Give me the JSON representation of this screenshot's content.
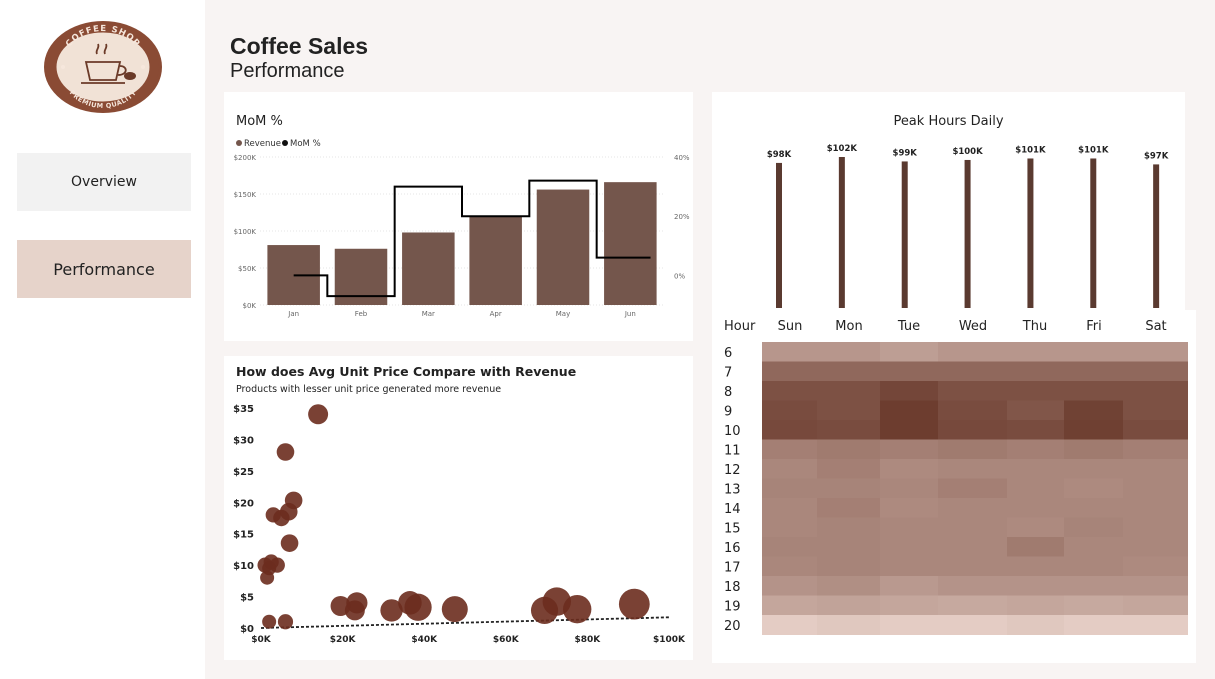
{
  "sidebar": {
    "logo": {
      "arc_top": "COFFEE SHOP",
      "arc_bottom": "PREMIUM QUALITY"
    },
    "nav": [
      {
        "label": "Overview",
        "active": false
      },
      {
        "label": "Performance",
        "active": true
      }
    ]
  },
  "header": {
    "title": "Coffee Sales",
    "subtitle": "Performance"
  },
  "colors": {
    "bar": "#74564c",
    "line": "#000000",
    "scatter": "#6b2c1e",
    "thin_bar": "#5a3a30",
    "heat_dark": "#6a3a2c",
    "heat_light": "#ead4cc"
  },
  "mom_card": {
    "title": "MoM %",
    "legend": [
      "Revenue",
      "MoM %"
    ]
  },
  "peak_card": {
    "title": "Peak Hours Daily"
  },
  "scatter_card": {
    "title": "How does Avg Unit Price Compare with Revenue",
    "subtitle": "Products with lesser unit price generated more revenue"
  },
  "chart_data": [
    {
      "type": "bar",
      "title": "MoM %",
      "categories": [
        "Jan",
        "Feb",
        "Mar",
        "Apr",
        "May",
        "Jun"
      ],
      "series": [
        {
          "name": "Revenue",
          "values": [
            81000,
            76000,
            98000,
            119000,
            156000,
            166000
          ]
        },
        {
          "name": "MoM %",
          "type": "line",
          "values": [
            0,
            -7,
            30,
            20,
            32,
            6
          ]
        }
      ],
      "y_ticks": [
        "$0K",
        "$50K",
        "$100K",
        "$150K",
        "$200K"
      ],
      "ylim": [
        0,
        200000
      ],
      "y2_ticks": [
        "0%",
        "20%",
        "40%"
      ],
      "y2lim": [
        -10,
        40
      ],
      "legend": "top-left"
    },
    {
      "type": "bar",
      "title": "Peak Hours Daily",
      "categories": [
        "Sun",
        "Mon",
        "Tue",
        "Wed",
        "Thu",
        "Fri",
        "Sat"
      ],
      "values": [
        98000,
        102000,
        99000,
        100000,
        101000,
        101000,
        97000
      ],
      "labels": [
        "$98K",
        "$102K",
        "$99K",
        "$100K",
        "$101K",
        "$101K",
        "$97K"
      ]
    },
    {
      "type": "heatmap",
      "row_header": "Hour",
      "columns": [
        "Sun",
        "Mon",
        "Tue",
        "Wed",
        "Thu",
        "Fri",
        "Sat"
      ],
      "rows": [
        "6",
        "7",
        "8",
        "9",
        "10",
        "11",
        "12",
        "13",
        "14",
        "15",
        "16",
        "17",
        "18",
        "19",
        "20"
      ],
      "values": [
        [
          0.4,
          0.4,
          0.35,
          0.4,
          0.4,
          0.4,
          0.4
        ],
        [
          0.7,
          0.7,
          0.7,
          0.7,
          0.7,
          0.7,
          0.7
        ],
        [
          0.85,
          0.85,
          0.92,
          0.85,
          0.85,
          0.85,
          0.85
        ],
        [
          0.88,
          0.85,
          0.98,
          0.88,
          0.82,
          0.95,
          0.85
        ],
        [
          0.9,
          0.88,
          0.98,
          0.9,
          0.88,
          0.96,
          0.88
        ],
        [
          0.55,
          0.58,
          0.55,
          0.58,
          0.55,
          0.58,
          0.55
        ],
        [
          0.5,
          0.55,
          0.48,
          0.5,
          0.5,
          0.5,
          0.5
        ],
        [
          0.52,
          0.52,
          0.5,
          0.55,
          0.5,
          0.48,
          0.5
        ],
        [
          0.5,
          0.55,
          0.48,
          0.5,
          0.5,
          0.5,
          0.5
        ],
        [
          0.5,
          0.52,
          0.5,
          0.5,
          0.48,
          0.52,
          0.5
        ],
        [
          0.52,
          0.52,
          0.5,
          0.5,
          0.58,
          0.5,
          0.5
        ],
        [
          0.5,
          0.52,
          0.5,
          0.5,
          0.5,
          0.5,
          0.48
        ],
        [
          0.42,
          0.45,
          0.38,
          0.42,
          0.42,
          0.42,
          0.42
        ],
        [
          0.3,
          0.32,
          0.3,
          0.28,
          0.3,
          0.28,
          0.3
        ],
        [
          0.05,
          0.08,
          0.05,
          0.05,
          0.08,
          0.05,
          0.05
        ]
      ]
    },
    {
      "type": "scatter",
      "title": "How does Avg Unit Price Compare with Revenue",
      "x_ticks": [
        "$0K",
        "$20K",
        "$40K",
        "$60K",
        "$80K",
        "$100K"
      ],
      "xlim": [
        0,
        100000
      ],
      "y_ticks": [
        "$0",
        "$5",
        "$10",
        "$15",
        "$20",
        "$25",
        "$30",
        "$35"
      ],
      "ylim": [
        0,
        35
      ],
      "trendline": true,
      "points": [
        {
          "x": 14000,
          "y": 34,
          "size": 1.0
        },
        {
          "x": 6000,
          "y": 28,
          "size": 0.8
        },
        {
          "x": 8000,
          "y": 20.3,
          "size": 0.8
        },
        {
          "x": 3000,
          "y": 18,
          "size": 0.6
        },
        {
          "x": 6800,
          "y": 18.5,
          "size": 0.8
        },
        {
          "x": 5000,
          "y": 17.5,
          "size": 0.7
        },
        {
          "x": 7000,
          "y": 13.5,
          "size": 0.8
        },
        {
          "x": 1000,
          "y": 10,
          "size": 0.6
        },
        {
          "x": 2500,
          "y": 10.5,
          "size": 0.6
        },
        {
          "x": 4000,
          "y": 10,
          "size": 0.6
        },
        {
          "x": 2000,
          "y": 9.5,
          "size": 0.5
        },
        {
          "x": 1500,
          "y": 8,
          "size": 0.5
        },
        {
          "x": 2000,
          "y": 1,
          "size": 0.5
        },
        {
          "x": 6000,
          "y": 1,
          "size": 0.6
        },
        {
          "x": 19500,
          "y": 3.5,
          "size": 1.0
        },
        {
          "x": 23500,
          "y": 4,
          "size": 1.1
        },
        {
          "x": 23000,
          "y": 2.8,
          "size": 1.0
        },
        {
          "x": 32000,
          "y": 2.8,
          "size": 1.2
        },
        {
          "x": 36500,
          "y": 4,
          "size": 1.3
        },
        {
          "x": 38500,
          "y": 3.3,
          "size": 1.6
        },
        {
          "x": 47500,
          "y": 3,
          "size": 1.5
        },
        {
          "x": 69500,
          "y": 2.8,
          "size": 1.6
        },
        {
          "x": 72500,
          "y": 4.2,
          "size": 1.7
        },
        {
          "x": 77500,
          "y": 3,
          "size": 1.7
        },
        {
          "x": 91500,
          "y": 3.8,
          "size": 1.9
        }
      ]
    }
  ]
}
